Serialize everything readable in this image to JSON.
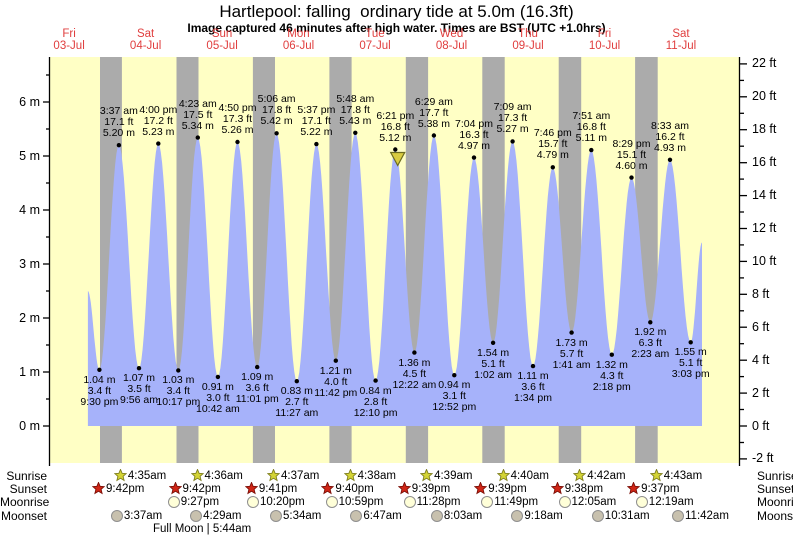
{
  "header": {
    "title": "Hartlepool: falling  ordinary tide at 5.0m (16.3ft)",
    "subtitle": "Image captured 46 minutes after high water. Times are BST (UTC +1.0hrs)"
  },
  "days": [
    {
      "dow": "Fri",
      "date": "03-Jul"
    },
    {
      "dow": "Sat",
      "date": "04-Jul"
    },
    {
      "dow": "Sun",
      "date": "05-Jul"
    },
    {
      "dow": "Mon",
      "date": "06-Jul"
    },
    {
      "dow": "Tue",
      "date": "07-Jul"
    },
    {
      "dow": "Wed",
      "date": "08-Jul"
    },
    {
      "dow": "Thu",
      "date": "09-Jul"
    },
    {
      "dow": "Fri",
      "date": "10-Jul"
    },
    {
      "dow": "Sat",
      "date": "11-Jul"
    }
  ],
  "chart_data": {
    "type": "area",
    "title": "Hartlepool: falling  ordinary tide at 5.0m (16.3ft)",
    "y_axis_left": {
      "suffix": " m",
      "min": 0,
      "max": 6,
      "tick_step": 1,
      "minor_step": 0.5
    },
    "y_axis_right": {
      "suffix": " ft",
      "min": -2,
      "max": 22,
      "tick_step": 2,
      "minor_step": 1
    },
    "tide_events": [
      {
        "type": "low",
        "day": 0,
        "time": "9:30 pm",
        "ft": "3.4 ft",
        "m": "1.04 m"
      },
      {
        "type": "high",
        "day": 1,
        "time": "3:37 am",
        "ft": "17.1 ft",
        "m": "5.20 m"
      },
      {
        "type": "low",
        "day": 1,
        "time": "9:56 am",
        "ft": "3.5 ft",
        "m": "1.07 m"
      },
      {
        "type": "high",
        "day": 1,
        "time": "4:00 pm",
        "ft": "17.2 ft",
        "m": "5.23 m"
      },
      {
        "type": "low",
        "day": 1,
        "time": "10:17 pm",
        "ft": "3.4 ft",
        "m": "1.03 m"
      },
      {
        "type": "high",
        "day": 2,
        "time": "4:23 am",
        "ft": "17.5 ft",
        "m": "5.34 m"
      },
      {
        "type": "low",
        "day": 2,
        "time": "10:42 am",
        "ft": "3.0 ft",
        "m": "0.91 m"
      },
      {
        "type": "high",
        "day": 2,
        "time": "4:50 pm",
        "ft": "17.3 ft",
        "m": "5.26 m"
      },
      {
        "type": "low",
        "day": 2,
        "time": "11:01 pm",
        "ft": "3.6 ft",
        "m": "1.09 m"
      },
      {
        "type": "high",
        "day": 3,
        "time": "5:06 am",
        "ft": "17.8 ft",
        "m": "5.42 m"
      },
      {
        "type": "low",
        "day": 3,
        "time": "11:27 am",
        "ft": "2.7 ft",
        "m": "0.83 m"
      },
      {
        "type": "high",
        "day": 3,
        "time": "5:37 pm",
        "ft": "17.1 ft",
        "m": "5.22 m"
      },
      {
        "type": "low",
        "day": 3,
        "time": "11:42 pm",
        "ft": "4.0 ft",
        "m": "1.21 m"
      },
      {
        "type": "high",
        "day": 4,
        "time": "5:48 am",
        "ft": "17.8 ft",
        "m": "5.43 m"
      },
      {
        "type": "low",
        "day": 4,
        "time": "12:10 pm",
        "ft": "2.8 ft",
        "m": "0.84 m"
      },
      {
        "type": "high",
        "day": 4,
        "time": "6:21 pm",
        "ft": "16.8 ft",
        "m": "5.12 m"
      },
      {
        "type": "low",
        "day": 5,
        "time": "12:22 am",
        "ft": "4.5 ft",
        "m": "1.36 m"
      },
      {
        "type": "high",
        "day": 5,
        "time": "6:29 am",
        "ft": "17.7 ft",
        "m": "5.38 m"
      },
      {
        "type": "low",
        "day": 5,
        "time": "12:52 pm",
        "ft": "3.1 ft",
        "m": "0.94 m"
      },
      {
        "type": "high",
        "day": 5,
        "time": "7:04 pm",
        "ft": "16.3 ft",
        "m": "4.97 m"
      },
      {
        "type": "low",
        "day": 6,
        "time": "1:02 am",
        "ft": "5.1 ft",
        "m": "1.54 m"
      },
      {
        "type": "high",
        "day": 6,
        "time": "7:09 am",
        "ft": "17.3 ft",
        "m": "5.27 m"
      },
      {
        "type": "low",
        "day": 6,
        "time": "1:34 pm",
        "ft": "3.6 ft",
        "m": "1.11 m"
      },
      {
        "type": "high",
        "day": 6,
        "time": "7:46 pm",
        "ft": "15.7 ft",
        "m": "4.79 m"
      },
      {
        "type": "low",
        "day": 7,
        "time": "1:41 am",
        "ft": "5.7 ft",
        "m": "1.73 m"
      },
      {
        "type": "high",
        "day": 7,
        "time": "7:51 am",
        "ft": "16.8 ft",
        "m": "5.11 m"
      },
      {
        "type": "low",
        "day": 7,
        "time": "2:18 pm",
        "ft": "4.3 ft",
        "m": "1.32 m"
      },
      {
        "type": "high",
        "day": 7,
        "time": "8:29 pm",
        "ft": "15.1 ft",
        "m": "4.60 m"
      },
      {
        "type": "low",
        "day": 8,
        "time": "2:23 am",
        "ft": "6.3 ft",
        "m": "1.92 m"
      },
      {
        "type": "high",
        "day": 8,
        "time": "8:33 am",
        "ft": "16.2 ft",
        "m": "4.93 m"
      },
      {
        "type": "low",
        "day": 8,
        "time": "3:03 pm",
        "ft": "5.1 ft",
        "m": "1.55 m"
      }
    ],
    "curve_edges": {
      "start": {
        "hours_before_first_event": 3.6,
        "m": 2.5
      },
      "end": {
        "hours_after_last_event": 3.55,
        "m": 3.4
      }
    },
    "current_marker": {
      "shape": "triangle-down",
      "at_high_time": "6:21 pm",
      "day": 4,
      "minutes_after_high": 46
    }
  },
  "astro": {
    "row_labels": [
      "Sunrise",
      "Sunset",
      "Moonrise",
      "Moonset"
    ],
    "sunrise": [
      {
        "day": 1,
        "time": "4:35am"
      },
      {
        "day": 2,
        "time": "4:36am"
      },
      {
        "day": 3,
        "time": "4:37am"
      },
      {
        "day": 4,
        "time": "4:38am"
      },
      {
        "day": 5,
        "time": "4:39am"
      },
      {
        "day": 6,
        "time": "4:40am"
      },
      {
        "day": 7,
        "time": "4:42am"
      },
      {
        "day": 8,
        "time": "4:43am"
      }
    ],
    "sunset": [
      {
        "day": 0,
        "time": "9:42pm"
      },
      {
        "day": 1,
        "time": "9:42pm"
      },
      {
        "day": 2,
        "time": "9:41pm"
      },
      {
        "day": 3,
        "time": "9:40pm"
      },
      {
        "day": 4,
        "time": "9:39pm"
      },
      {
        "day": 5,
        "time": "9:39pm"
      },
      {
        "day": 6,
        "time": "9:38pm"
      },
      {
        "day": 7,
        "time": "9:37pm"
      }
    ],
    "moonrise": [
      {
        "day": 1,
        "time": "9:27pm"
      },
      {
        "day": 2,
        "time": "10:20pm"
      },
      {
        "day": 3,
        "time": "10:59pm"
      },
      {
        "day": 4,
        "time": "11:28pm"
      },
      {
        "day": 5,
        "time": "11:49pm"
      },
      {
        "day": 7,
        "time": "12:05am"
      },
      {
        "day": 8,
        "time": "12:19am"
      }
    ],
    "moonset": [
      {
        "day": 1,
        "time": "3:37am"
      },
      {
        "day": 2,
        "time": "4:29am"
      },
      {
        "day": 3,
        "time": "5:34am"
      },
      {
        "day": 4,
        "time": "6:47am"
      },
      {
        "day": 5,
        "time": "8:03am"
      },
      {
        "day": 6,
        "time": "9:18am"
      },
      {
        "day": 7,
        "time": "10:31am"
      },
      {
        "day": 8,
        "time": "11:42am"
      }
    ],
    "full_moon": {
      "label": "Full Moon",
      "separator": "|",
      "time": "5:44am",
      "day": 2
    }
  },
  "colors": {
    "day_bg": "#ffffc5",
    "night_bg": "#ababab",
    "tide_fill": "#a6b2fa",
    "day_label": "#e03e3e",
    "marker_fill": "#d9cc40",
    "marker_stroke": "#6b6b1f",
    "sunrise_star_fill": "#d4d435",
    "sunrise_star_stroke": "#7f7f1f",
    "sunset_star_fill": "#d02616",
    "sunset_star_stroke": "#7c1008",
    "moonrise_fill": "#ffffd8",
    "moonset_fill": "#c8c1ae",
    "moon_stroke": "#8f8f8f",
    "axis": "#000000"
  }
}
